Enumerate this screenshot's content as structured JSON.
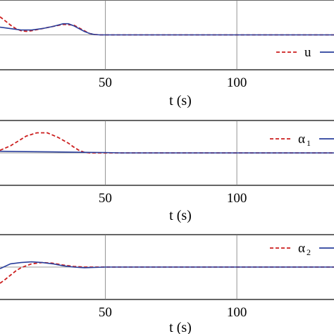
{
  "chart_data": [
    {
      "type": "line",
      "xlabel": "t (s)",
      "x_ticks": [
        50,
        100
      ],
      "xlim": [
        10,
        138
      ],
      "ylim": [
        -1,
        1
      ],
      "grid": true,
      "legend": {
        "placement": "right",
        "entries": [
          {
            "text": "u",
            "sub": ""
          }
        ]
      },
      "series": [
        {
          "style": "dashed",
          "color": "#cc1f1f",
          "x": [
            10,
            12,
            14,
            16,
            18,
            20,
            22,
            26,
            30,
            34,
            38,
            40,
            42,
            44,
            46,
            48,
            138
          ],
          "y": [
            0.52,
            0.4,
            0.28,
            0.18,
            0.12,
            0.1,
            0.12,
            0.18,
            0.24,
            0.3,
            0.28,
            0.2,
            0.12,
            0.04,
            0.01,
            0.0,
            0.0
          ]
        },
        {
          "style": "solid",
          "color": "#2a3f9c",
          "x": [
            10,
            14,
            18,
            22,
            26,
            30,
            34,
            36,
            38,
            40,
            42,
            44,
            46,
            48,
            138
          ],
          "y": [
            0.22,
            0.18,
            0.14,
            0.14,
            0.18,
            0.24,
            0.32,
            0.32,
            0.26,
            0.18,
            0.1,
            0.04,
            0.01,
            0.0,
            0.0
          ]
        }
      ]
    },
    {
      "type": "line",
      "xlabel": "t (s)",
      "x_ticks": [
        50,
        100
      ],
      "xlim": [
        10,
        138
      ],
      "ylim": [
        -1,
        1
      ],
      "grid": true,
      "legend": {
        "placement": "top-right",
        "entries": [
          {
            "text": "α",
            "sub": "1"
          }
        ]
      },
      "series": [
        {
          "style": "dashed",
          "color": "#cc1f1f",
          "x": [
            10,
            14,
            18,
            20,
            24,
            28,
            32,
            36,
            38,
            40,
            42,
            44,
            138
          ],
          "y": [
            0.08,
            0.22,
            0.42,
            0.52,
            0.62,
            0.62,
            0.48,
            0.3,
            0.18,
            0.08,
            0.02,
            0.0,
            0.0
          ]
        },
        {
          "style": "solid",
          "color": "#2a3f9c",
          "x": [
            10,
            20,
            30,
            40,
            50,
            56,
            138
          ],
          "y": [
            0.05,
            0.04,
            0.03,
            0.02,
            0.01,
            0.0,
            0.0
          ]
        }
      ]
    },
    {
      "type": "line",
      "xlabel": "t (s)",
      "x_ticks": [
        50,
        100
      ],
      "xlim": [
        10,
        138
      ],
      "ylim": [
        -1,
        1
      ],
      "grid": true,
      "legend": {
        "placement": "top-right",
        "entries": [
          {
            "text": "α",
            "sub": "2"
          }
        ]
      },
      "series": [
        {
          "style": "dashed",
          "color": "#cc1f1f",
          "x": [
            10,
            12,
            14,
            16,
            18,
            22,
            26,
            30,
            34,
            38,
            42,
            46,
            50,
            138
          ],
          "y": [
            -0.5,
            -0.38,
            -0.25,
            -0.12,
            -0.02,
            0.1,
            0.14,
            0.12,
            0.06,
            0.02,
            0.0,
            0.0,
            0.0,
            0.0
          ]
        },
        {
          "style": "solid",
          "color": "#2a3f9c",
          "x": [
            10,
            14,
            18,
            22,
            26,
            30,
            34,
            38,
            42,
            46,
            50,
            138
          ],
          "y": [
            -0.05,
            0.1,
            0.14,
            0.16,
            0.14,
            0.1,
            0.04,
            0.0,
            -0.02,
            -0.01,
            0.0,
            0.0
          ]
        }
      ]
    }
  ]
}
